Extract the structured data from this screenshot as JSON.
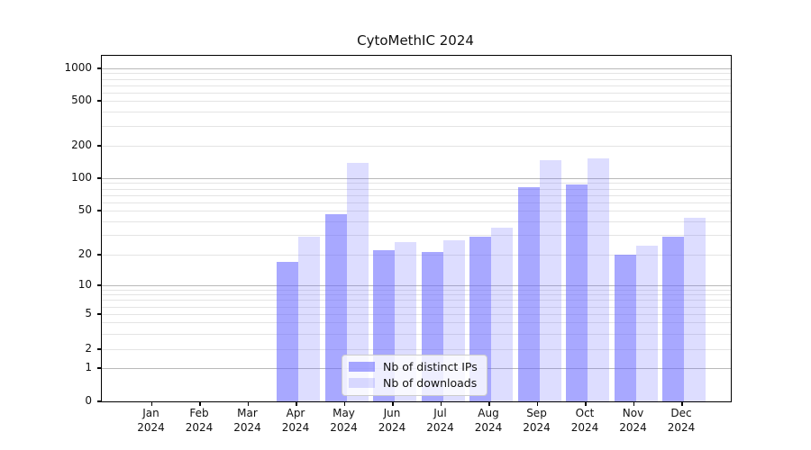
{
  "chart_data": {
    "type": "bar",
    "title": "CytoMethIC 2024",
    "categories": [
      "Jan",
      "Feb",
      "Mar",
      "Apr",
      "May",
      "Jun",
      "Jul",
      "Aug",
      "Sep",
      "Oct",
      "Nov",
      "Dec"
    ],
    "year": "2024",
    "series": [
      {
        "name": "Nb of distinct IPs",
        "color": "#6666ff",
        "alpha": 0.57,
        "values": [
          0,
          0,
          0,
          17,
          46,
          22,
          21,
          29,
          83,
          87,
          20,
          29
        ]
      },
      {
        "name": "Nb of downloads",
        "color": "#6666ff",
        "alpha": 0.22,
        "values": [
          0,
          0,
          0,
          29,
          140,
          26,
          27,
          35,
          148,
          152,
          24,
          43
        ]
      }
    ],
    "xlabel": "",
    "ylabel": "",
    "y_scale": "symlog",
    "y_ticks": [
      0,
      1,
      2,
      5,
      10,
      20,
      50,
      100,
      200,
      500,
      1000
    ],
    "ylim": [
      0,
      1300
    ],
    "grid": "horizontal",
    "legend_position": "lower center",
    "colors": {
      "grid_minor": "#e4e4e4",
      "grid_major": "#b9b9b9",
      "spine": "#000000"
    }
  }
}
